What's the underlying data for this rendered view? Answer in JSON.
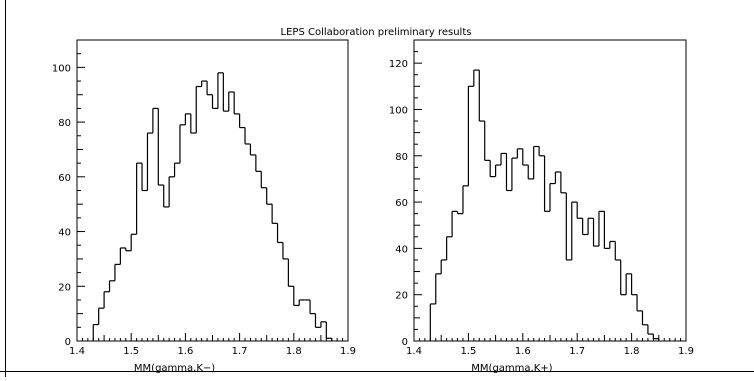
{
  "title": "LEPS Collaboration preliminary results",
  "chart_data": [
    {
      "type": "histogram",
      "xlabel": "MM(gamma,K−)",
      "xlim": [
        1.4,
        1.9
      ],
      "ylim": [
        0,
        110
      ],
      "xticks": [
        "1.4",
        "1.5",
        "1.6",
        "1.7",
        "1.8",
        "1.9"
      ],
      "yticks": [
        "0",
        "20",
        "40",
        "60",
        "80",
        "100"
      ],
      "bin_start": 1.4,
      "bin_width": 0.01,
      "values": [
        0,
        0,
        0,
        6,
        12,
        18,
        22,
        28,
        34,
        33,
        39,
        65,
        55,
        76,
        85,
        57,
        49,
        60,
        65,
        79,
        83,
        76,
        93,
        95,
        90,
        85,
        98,
        84,
        91,
        83,
        78,
        72,
        68,
        62,
        56,
        50,
        43,
        36,
        30,
        20,
        13,
        15,
        15,
        10,
        5,
        7,
        1,
        0,
        0,
        0
      ]
    },
    {
      "type": "histogram",
      "xlabel": "MM(gamma,K+)",
      "xlim": [
        1.4,
        1.9
      ],
      "ylim": [
        0,
        130
      ],
      "xticks": [
        "1.4",
        "1.5",
        "1.6",
        "1.7",
        "1.8",
        "1.9"
      ],
      "yticks": [
        "0",
        "20",
        "40",
        "60",
        "80",
        "100",
        "120"
      ],
      "bin_start": 1.4,
      "bin_width": 0.01,
      "values": [
        0,
        0,
        0,
        16,
        29,
        35,
        45,
        56,
        55,
        67,
        110,
        117,
        95,
        78,
        71,
        76,
        81,
        65,
        79,
        83,
        76,
        70,
        84,
        80,
        56,
        68,
        73,
        64,
        35,
        60,
        53,
        46,
        53,
        41,
        56,
        40,
        43,
        35,
        20,
        29,
        20,
        13,
        7,
        3,
        1,
        0,
        0,
        0,
        0,
        0
      ]
    }
  ]
}
